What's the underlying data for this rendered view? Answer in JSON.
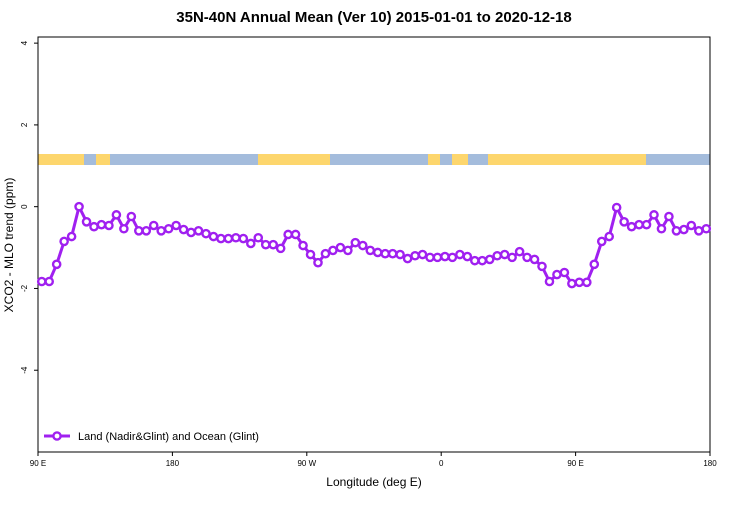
{
  "chart_data": {
    "type": "line",
    "title": "35N-40N Annual Mean (Ver 10)   2015-01-01 to 2020-12-18",
    "x_label": "Longitude (deg E)",
    "y_label": "XCO2 - MLO trend (ppm)",
    "xlim": [
      90,
      540
    ],
    "ylim": [
      -6,
      4.15
    ],
    "xticks": [
      {
        "value": 90,
        "label": "90 E"
      },
      180,
      {
        "value": 270,
        "label": "90 W"
      },
      {
        "value": 360,
        "label": "0"
      },
      {
        "value": 450,
        "label": "90 E"
      },
      {
        "value": 540,
        "label": "180"
      }
    ],
    "yticks": [
      -4,
      -2,
      0,
      2,
      4
    ],
    "legend": "bottom-left",
    "x": [
      92.5,
      97.5,
      102.5,
      107.5,
      112.5,
      117.5,
      122.5,
      127.5,
      132.5,
      137.5,
      142.5,
      147.5,
      152.5,
      157.5,
      162.5,
      167.5,
      172.5,
      177.5,
      182.5,
      187.5,
      192.5,
      197.5,
      202.5,
      207.5,
      212.5,
      217.5,
      222.5,
      227.5,
      232.5,
      237.5,
      242.5,
      247.5,
      252.5,
      257.5,
      262.5,
      267.5,
      272.5,
      277.5,
      282.5,
      287.5,
      292.5,
      297.5,
      302.5,
      307.5,
      312.5,
      317.5,
      322.5,
      327.5,
      332.5,
      337.5,
      342.5,
      347.5,
      352.5,
      357.5,
      362.5,
      367.5,
      372.5,
      377.5,
      382.5,
      387.5,
      392.5,
      397.5,
      402.5,
      407.5,
      412.5,
      417.5,
      422.5,
      427.5,
      432.5,
      437.5,
      442.5,
      447.5,
      452.5,
      457.5,
      462.5,
      467.5,
      472.5,
      477.5,
      482.5,
      487.5,
      492.5,
      497.5,
      502.5,
      507.5,
      512.5,
      517.5,
      522.5,
      527.5,
      532.5,
      537.5
    ],
    "series": [
      {
        "name": "Land (Nadir&Glint) and Ocean (Glint)",
        "color": "#a020f0",
        "values": [
          -1.83,
          -1.83,
          -1.41,
          -0.85,
          -0.73,
          0,
          -0.37,
          -0.49,
          -0.44,
          -0.46,
          -0.2,
          -0.54,
          -0.24,
          -0.59,
          -0.59,
          -0.46,
          -0.59,
          -0.54,
          -0.46,
          -0.56,
          -0.63,
          -0.59,
          -0.66,
          -0.73,
          -0.78,
          -0.78,
          -0.76,
          -0.78,
          -0.9,
          -0.76,
          -0.93,
          -0.93,
          -1.02,
          -0.68,
          -0.68,
          -0.95,
          -1.17,
          -1.37,
          -1.15,
          -1.07,
          -1.0,
          -1.07,
          -0.88,
          -0.95,
          -1.07,
          -1.12,
          -1.15,
          -1.15,
          -1.17,
          -1.27,
          -1.2,
          -1.17,
          -1.24,
          -1.24,
          -1.22,
          -1.24,
          -1.17,
          -1.22,
          -1.32,
          -1.32,
          -1.29,
          -1.2,
          -1.17,
          -1.24,
          -1.1,
          -1.24,
          -1.29,
          -1.46,
          -1.83,
          -1.66,
          -1.61,
          -1.88,
          -1.85,
          -1.85,
          -1.41,
          -0.85,
          -0.73,
          -0.02,
          -0.37,
          -0.49,
          -0.44,
          -0.44,
          -0.2,
          -0.54,
          -0.24,
          -0.59,
          -0.56,
          -0.46,
          -0.59,
          -0.54
        ]
      }
    ]
  }
}
